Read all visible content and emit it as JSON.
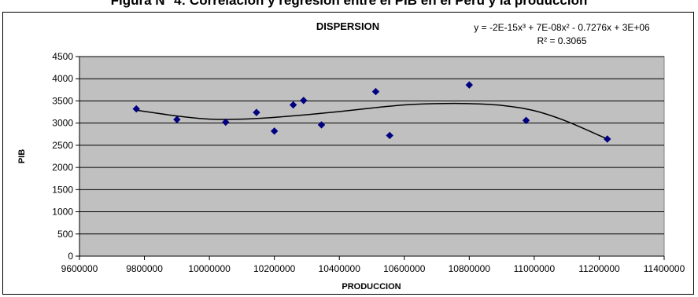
{
  "caption": "Figura N° 4: Correlación y regresión entre el PIB en el Perú y la producción",
  "chart_data": {
    "type": "scatter",
    "title": "DISPERSION",
    "xlabel": "PRODUCCION",
    "ylabel": "PIB",
    "xlim": [
      9600000,
      11400000
    ],
    "ylim": [
      0,
      4500
    ],
    "x_ticks": [
      9600000,
      9800000,
      10000000,
      10200000,
      10400000,
      10600000,
      10800000,
      11000000,
      11200000,
      11400000
    ],
    "y_ticks": [
      0,
      500,
      1000,
      1500,
      2000,
      2500,
      3000,
      3500,
      4000,
      4500
    ],
    "grid": true,
    "plot_background": "#c0c0c0",
    "marker_color": "#000080",
    "series": [
      {
        "x": [
          9775000,
          9900000,
          10050000,
          10145000,
          10200000,
          10258000,
          10290000,
          10345000,
          10512000,
          10555000,
          10800000,
          10975000,
          11225000
        ],
        "y": [
          3320,
          3080,
          3020,
          3240,
          2820,
          3410,
          3510,
          2960,
          3710,
          2720,
          3860,
          3060,
          2640
        ]
      }
    ],
    "trendline": {
      "type": "polynomial",
      "order": 3,
      "equation": "y = -2E-15x³ + 7E-08x² - 0.7276x + 3E+06",
      "r2_label": "R² = 0.3065",
      "x": [
        9775000,
        9900000,
        10000000,
        10100000,
        10200000,
        10300000,
        10400000,
        10500000,
        10600000,
        10700000,
        10800000,
        10900000,
        11000000,
        11100000,
        11225000
      ],
      "y": [
        3290,
        3160,
        3090,
        3090,
        3130,
        3190,
        3260,
        3340,
        3410,
        3440,
        3440,
        3400,
        3280,
        3040,
        2640
      ]
    }
  }
}
